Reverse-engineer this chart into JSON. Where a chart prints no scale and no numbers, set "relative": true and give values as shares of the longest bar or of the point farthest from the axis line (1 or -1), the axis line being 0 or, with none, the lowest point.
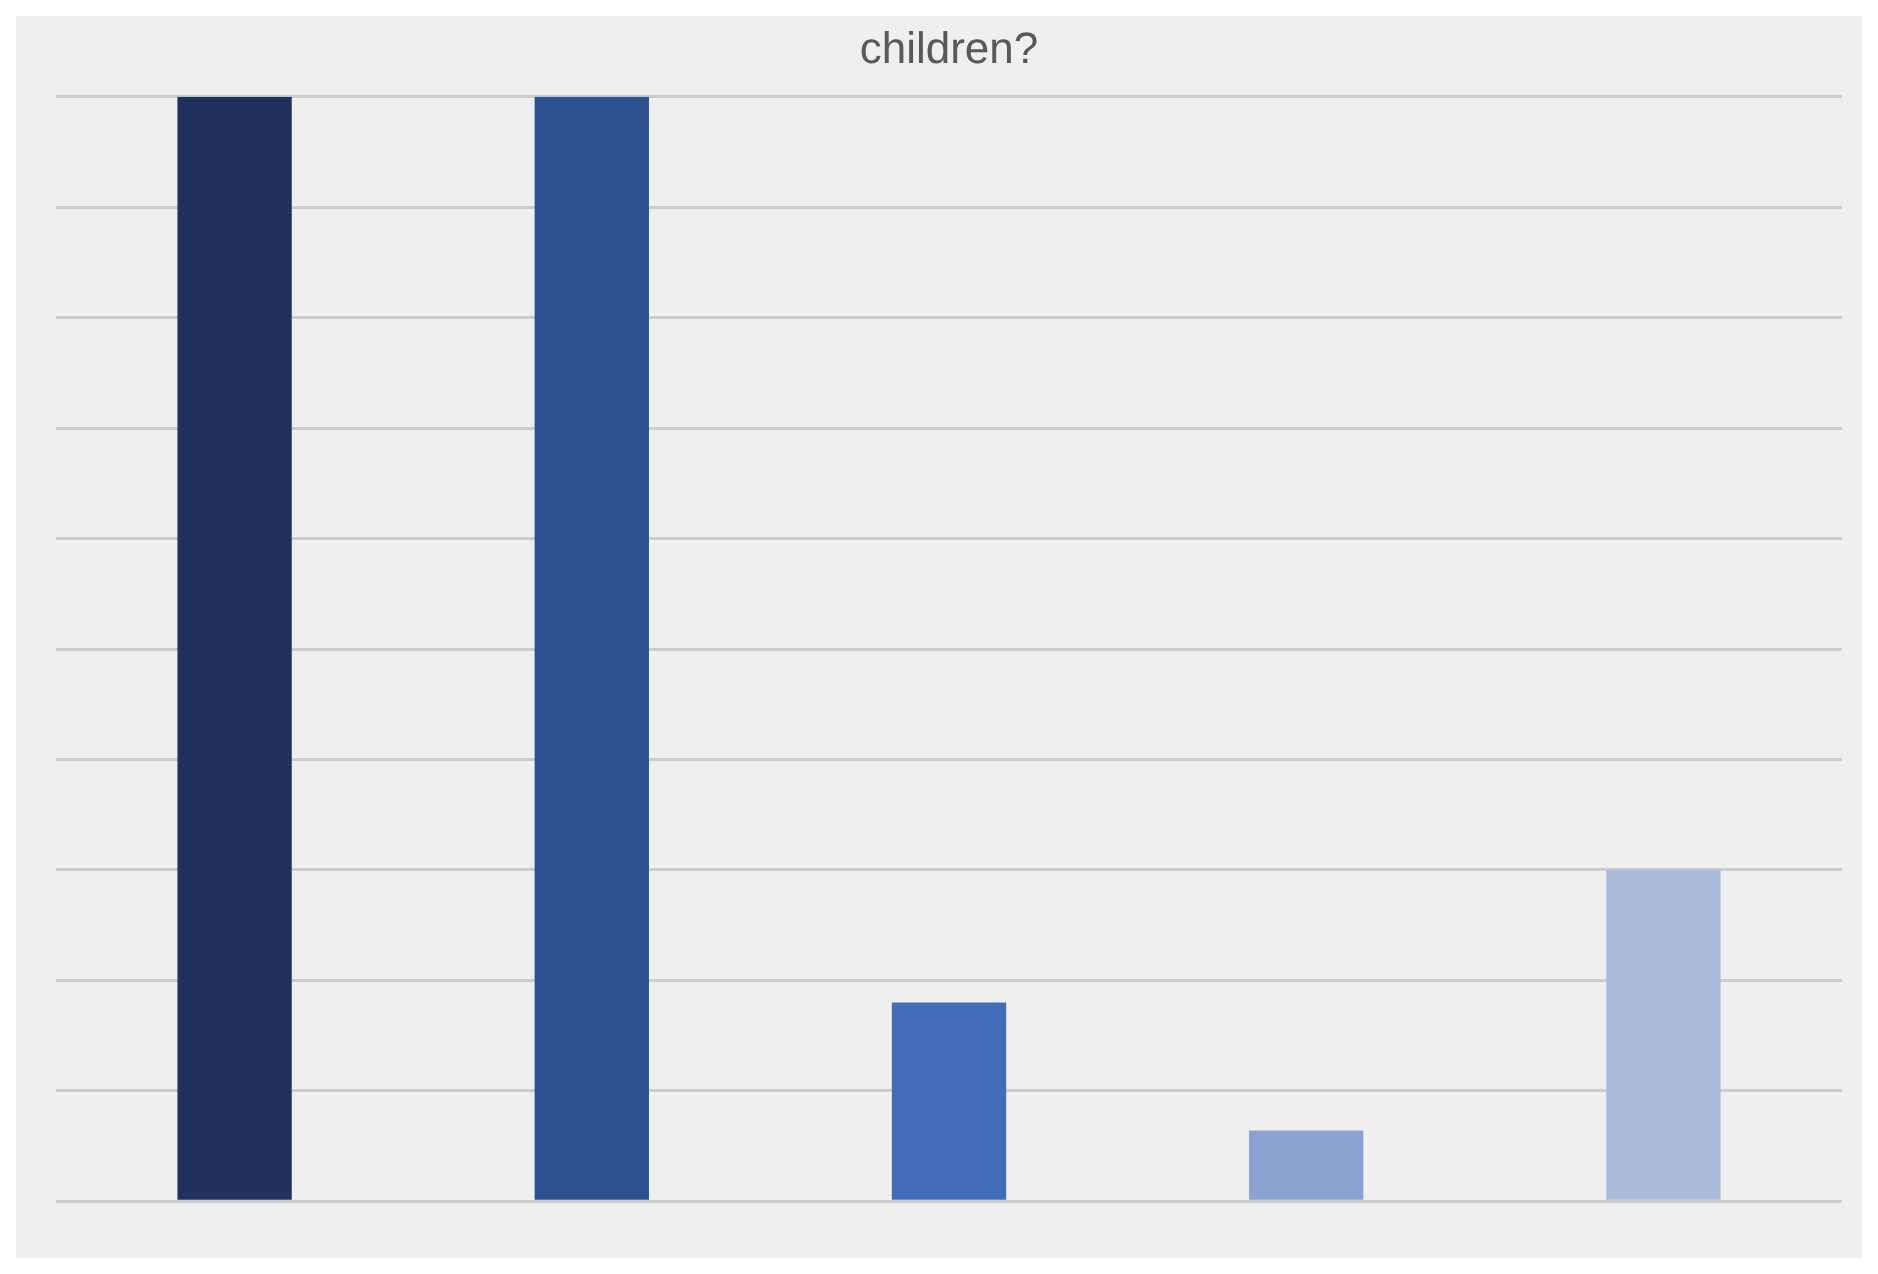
{
  "chart_data": {
    "type": "bar",
    "title": "children?",
    "categories": [
      null,
      null,
      null,
      null,
      null
    ],
    "relative": true,
    "values": [
      1,
      1,
      0.18,
      0.064,
      0.3
    ],
    "colors": [
      "#1f315c",
      "#2c508e",
      "#416cba",
      "#8aa1d1",
      "#a9badb"
    ],
    "grid": "y"
  }
}
